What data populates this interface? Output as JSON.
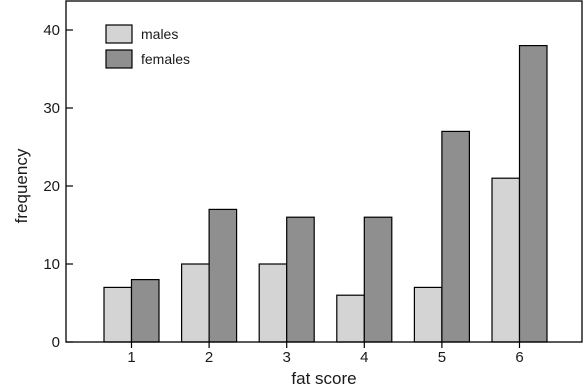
{
  "chart_data": {
    "type": "bar",
    "title": "",
    "xlabel": "fat score",
    "ylabel": "frequency",
    "categories": [
      "1",
      "2",
      "3",
      "4",
      "5",
      "6"
    ],
    "yticks": [
      "0",
      "10",
      "20",
      "30",
      "40"
    ],
    "ylim": [
      0,
      42
    ],
    "grid": false,
    "legend_position": "top-left",
    "series": [
      {
        "name": "males",
        "values": [
          7,
          10,
          10,
          6,
          7,
          21
        ],
        "color": "#d4d4d4"
      },
      {
        "name": "females",
        "values": [
          8,
          17,
          16,
          16,
          27,
          38
        ],
        "color": "#8f8f8f"
      }
    ]
  }
}
